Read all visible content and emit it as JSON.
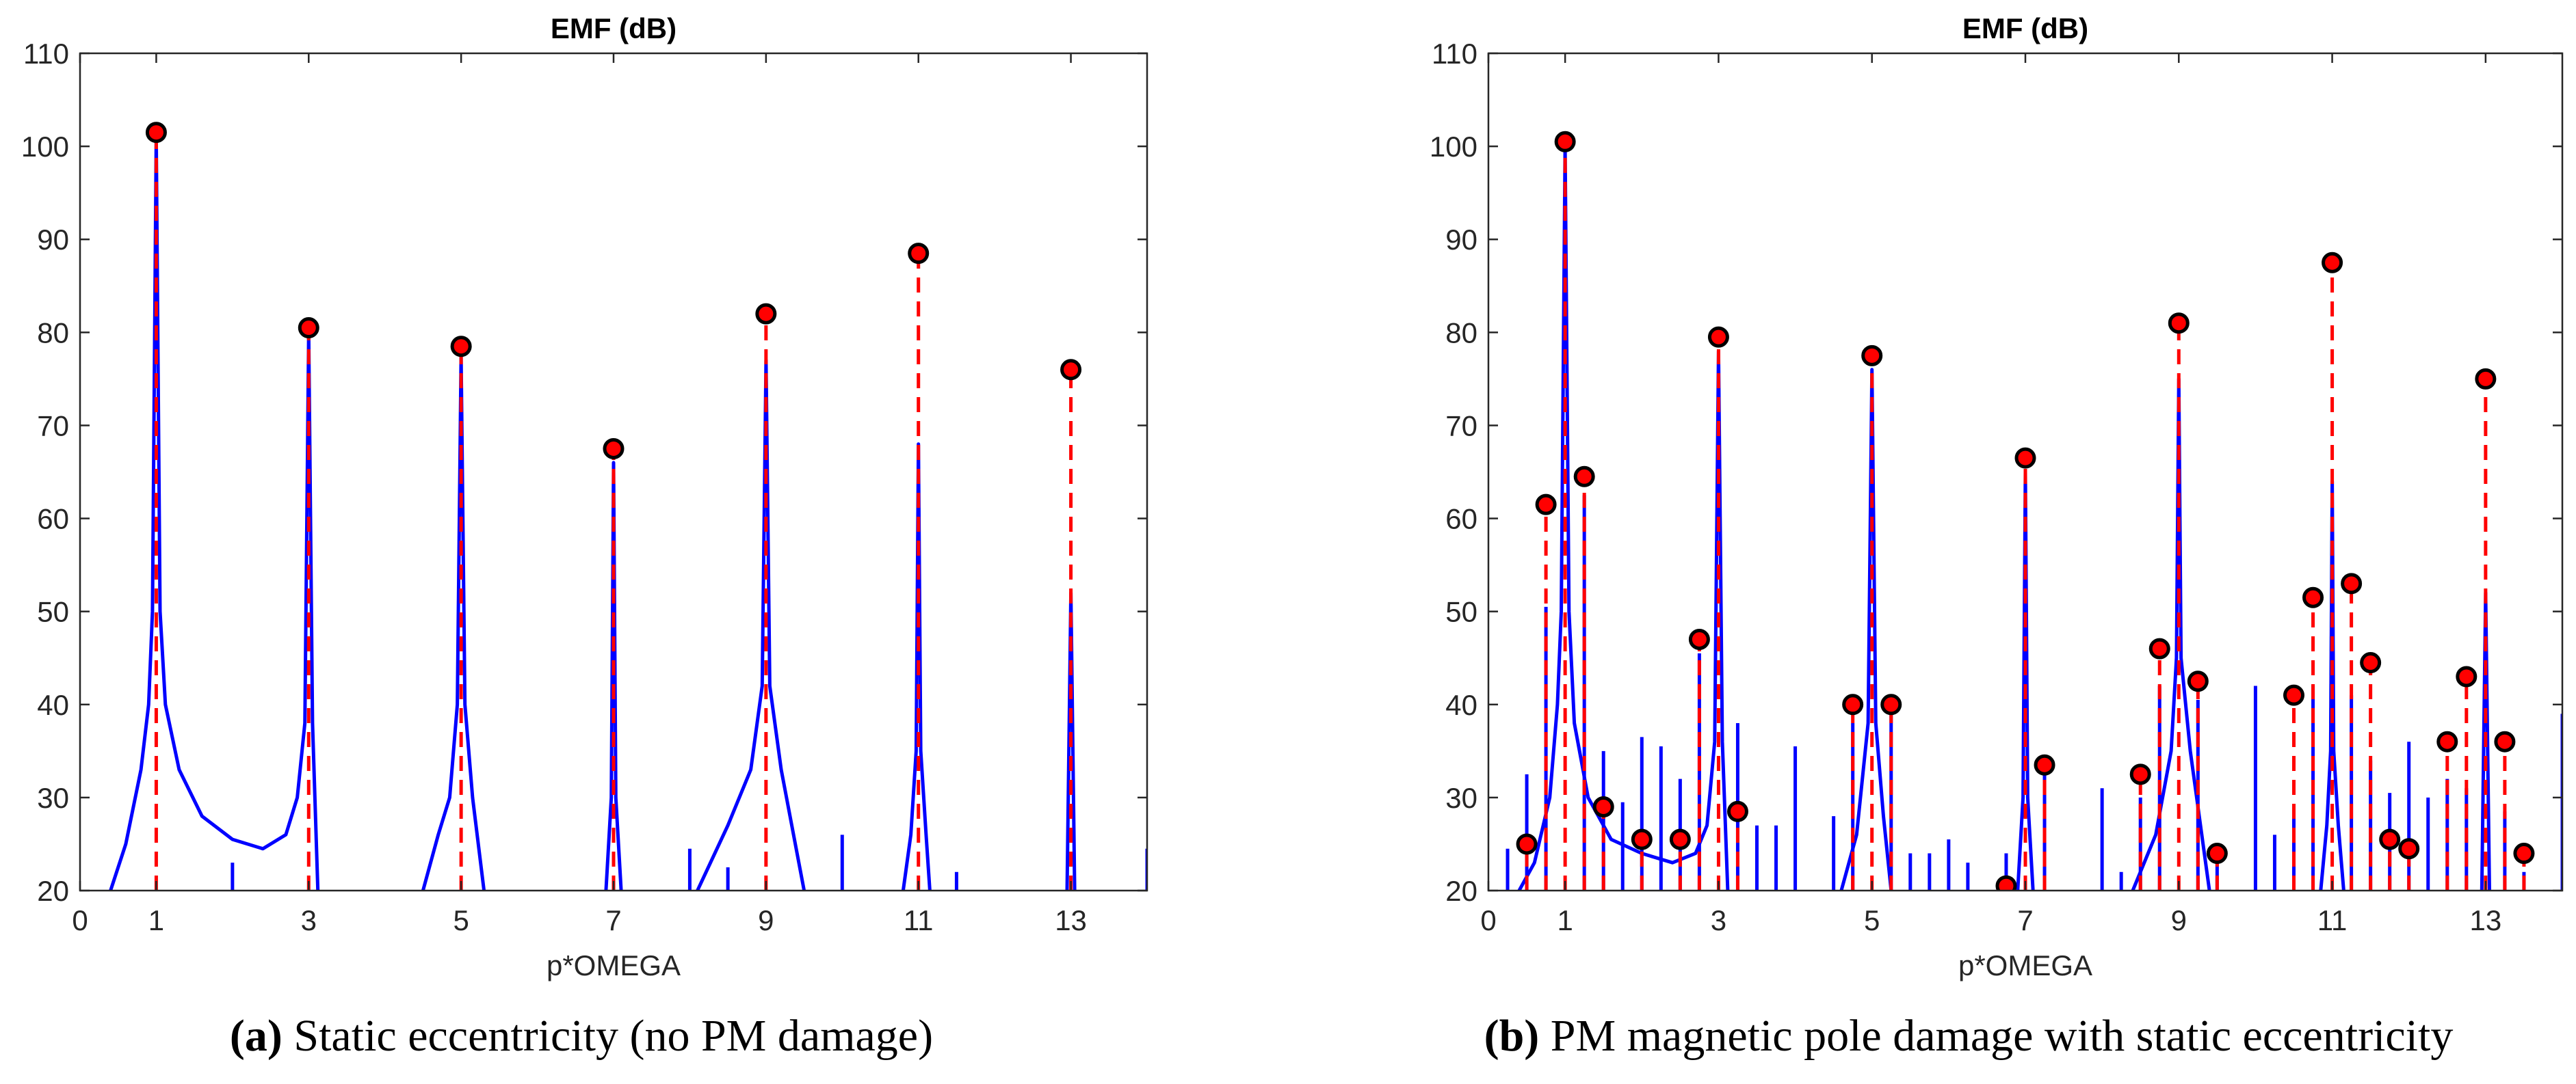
{
  "colors": {
    "spectrum": "#0000ff",
    "harmonic_stem": "#ff0000",
    "marker_fill": "#ff0000",
    "marker_edge": "#000000"
  },
  "captions": {
    "a_tag": "(a)",
    "a_text": " Static eccentricity (no PM damage)",
    "b_tag": "(b)",
    "b_text": " PM magnetic pole damage with static eccentricity"
  },
  "chart_data": [
    {
      "type": "line",
      "title": "EMF (dB)",
      "xlabel": "p*OMEGA",
      "ylabel": "",
      "xlim": [
        0,
        14
      ],
      "ylim": [
        20,
        110
      ],
      "xticks": [
        0,
        1,
        3,
        5,
        7,
        9,
        11,
        13
      ],
      "xtick_labels": [
        "0",
        "1",
        "3",
        "5",
        "7",
        "9",
        "11",
        "13"
      ],
      "yticks": [
        20,
        30,
        40,
        50,
        60,
        70,
        80,
        90,
        100,
        110
      ],
      "ytick_labels": [
        "20",
        "30",
        "40",
        "50",
        "60",
        "70",
        "80",
        "90",
        "100",
        "110"
      ],
      "grid": false,
      "spectrum_peaks": [
        {
          "x": 1,
          "peak": 101,
          "skirt": [
            [
              0.4,
              20
            ],
            [
              0.6,
              25
            ],
            [
              0.8,
              33
            ],
            [
              0.9,
              40
            ],
            [
              0.95,
              50
            ],
            [
              1.0,
              101
            ],
            [
              1.05,
              50
            ],
            [
              1.12,
              40
            ],
            [
              1.3,
              33
            ],
            [
              1.6,
              28
            ],
            [
              2.0,
              25.5
            ],
            [
              2.4,
              24.5
            ],
            [
              2.7,
              26
            ],
            [
              2.85,
              30
            ],
            [
              2.95,
              38
            ],
            [
              3.0,
              80
            ],
            [
              3.05,
              38
            ],
            [
              3.12,
              20
            ]
          ]
        },
        {
          "x": 5,
          "peak": 77.5,
          "skirt": [
            [
              4.5,
              20
            ],
            [
              4.7,
              26
            ],
            [
              4.85,
              30
            ],
            [
              4.95,
              40
            ],
            [
              5.0,
              77.5
            ],
            [
              5.05,
              40
            ],
            [
              5.15,
              30
            ],
            [
              5.3,
              20
            ]
          ]
        },
        {
          "x": 7,
          "peak": 66,
          "skirt": [
            [
              6.9,
              20
            ],
            [
              6.97,
              30
            ],
            [
              7.0,
              66
            ],
            [
              7.03,
              30
            ],
            [
              7.1,
              20
            ]
          ]
        },
        {
          "x": 9,
          "peak": 77,
          "skirt": [
            [
              8.1,
              20
            ],
            [
              8.5,
              27
            ],
            [
              8.8,
              33
            ],
            [
              8.95,
              42
            ],
            [
              9.0,
              77
            ],
            [
              9.05,
              42
            ],
            [
              9.2,
              33
            ],
            [
              9.5,
              20
            ]
          ]
        },
        {
          "x": 11,
          "peak": 68,
          "skirt": [
            [
              10.8,
              20
            ],
            [
              10.9,
              26
            ],
            [
              10.97,
              35
            ],
            [
              11.0,
              68
            ],
            [
              11.03,
              35
            ],
            [
              11.1,
              26
            ],
            [
              11.15,
              20
            ]
          ]
        },
        {
          "x": 13,
          "peak": 52,
          "skirt": [
            [
              12.95,
              20
            ],
            [
              13.0,
              52
            ],
            [
              13.05,
              20
            ]
          ]
        }
      ],
      "spectrum_lines": [
        [
          2.0,
          23
        ],
        [
          8.0,
          24.5
        ],
        [
          8.5,
          22.5
        ],
        [
          10.0,
          26
        ],
        [
          11.5,
          22
        ],
        [
          14.0,
          24.5
        ]
      ],
      "harmonic_stems": [
        {
          "x": 1,
          "y": 101.5
        },
        {
          "x": 3,
          "y": 80.5
        },
        {
          "x": 5,
          "y": 78.5
        },
        {
          "x": 7,
          "y": 67.5
        },
        {
          "x": 9,
          "y": 82
        },
        {
          "x": 11,
          "y": 88.5
        },
        {
          "x": 13,
          "y": 76
        }
      ]
    },
    {
      "type": "line",
      "title": "EMF (dB)",
      "xlabel": "p*OMEGA",
      "ylabel": "",
      "xlim": [
        0,
        14
      ],
      "ylim": [
        20,
        110
      ],
      "xticks": [
        0,
        1,
        3,
        5,
        7,
        9,
        11,
        13
      ],
      "xtick_labels": [
        "0",
        "1",
        "3",
        "5",
        "7",
        "9",
        "11",
        "13"
      ],
      "yticks": [
        20,
        30,
        40,
        50,
        60,
        70,
        80,
        90,
        100,
        110
      ],
      "ytick_labels": [
        "20",
        "30",
        "40",
        "50",
        "60",
        "70",
        "80",
        "90",
        "100",
        "110"
      ],
      "grid": false,
      "spectrum_peaks": [
        {
          "x": 1,
          "peak": 100,
          "skirt": [
            [
              0.4,
              20
            ],
            [
              0.6,
              23
            ],
            [
              0.8,
              30
            ],
            [
              0.9,
              40
            ],
            [
              0.95,
              50
            ],
            [
              1.0,
              100
            ],
            [
              1.05,
              50
            ],
            [
              1.12,
              38
            ],
            [
              1.3,
              30
            ],
            [
              1.6,
              25.5
            ],
            [
              2.0,
              24
            ],
            [
              2.4,
              23
            ],
            [
              2.7,
              24
            ],
            [
              2.85,
              27
            ],
            [
              2.95,
              36
            ],
            [
              3.0,
              78
            ],
            [
              3.05,
              36
            ],
            [
              3.12,
              20
            ]
          ]
        },
        {
          "x": 5,
          "peak": 76,
          "skirt": [
            [
              4.6,
              20
            ],
            [
              4.8,
              26
            ],
            [
              4.95,
              38
            ],
            [
              5.0,
              76
            ],
            [
              5.05,
              38
            ],
            [
              5.15,
              28
            ],
            [
              5.25,
              20
            ]
          ]
        },
        {
          "x": 7,
          "peak": 65,
          "skirt": [
            [
              6.9,
              20
            ],
            [
              6.97,
              30
            ],
            [
              7.0,
              65
            ],
            [
              7.03,
              30
            ],
            [
              7.1,
              20
            ]
          ]
        },
        {
          "x": 9,
          "peak": 75,
          "skirt": [
            [
              8.4,
              20
            ],
            [
              8.7,
              26
            ],
            [
              8.9,
              35
            ],
            [
              8.97,
              45
            ],
            [
              9.0,
              75
            ],
            [
              9.03,
              45
            ],
            [
              9.15,
              35
            ],
            [
              9.4,
              20
            ]
          ]
        },
        {
          "x": 11,
          "peak": 64,
          "skirt": [
            [
              10.85,
              20
            ],
            [
              10.93,
              27
            ],
            [
              10.98,
              35
            ],
            [
              11.0,
              64
            ],
            [
              11.02,
              35
            ],
            [
              11.08,
              27
            ],
            [
              11.15,
              20
            ]
          ]
        },
        {
          "x": 13,
          "peak": 52,
          "skirt": [
            [
              12.95,
              20
            ],
            [
              13.0,
              52
            ],
            [
              13.05,
              20
            ]
          ]
        }
      ],
      "spectrum_lines": [
        [
          0.25,
          24.5
        ],
        [
          0.5,
          32.5
        ],
        [
          0.75,
          50.5
        ],
        [
          1.25,
          62.5
        ],
        [
          1.5,
          35
        ],
        [
          1.75,
          29.5
        ],
        [
          2.0,
          36.5
        ],
        [
          2.25,
          35.5
        ],
        [
          2.5,
          32
        ],
        [
          2.75,
          45.5
        ],
        [
          3.25,
          38
        ],
        [
          3.5,
          27
        ],
        [
          3.75,
          27
        ],
        [
          4.0,
          35.5
        ],
        [
          4.5,
          28
        ],
        [
          4.75,
          38
        ],
        [
          5.25,
          39
        ],
        [
          5.5,
          24
        ],
        [
          5.75,
          24
        ],
        [
          6.0,
          25.5
        ],
        [
          6.25,
          23
        ],
        [
          6.75,
          24
        ],
        [
          7.25,
          33
        ],
        [
          8.0,
          31
        ],
        [
          8.25,
          22
        ],
        [
          8.5,
          30
        ],
        [
          8.75,
          42
        ],
        [
          9.25,
          40.5
        ],
        [
          9.5,
          23.5
        ],
        [
          10.0,
          42
        ],
        [
          10.25,
          26
        ],
        [
          10.5,
          29
        ],
        [
          10.75,
          42
        ],
        [
          11.25,
          41
        ],
        [
          11.5,
          34
        ],
        [
          11.75,
          30.5
        ],
        [
          12.0,
          36
        ],
        [
          12.25,
          30
        ],
        [
          12.5,
          32
        ],
        [
          12.75,
          31
        ],
        [
          13.25,
          28.5
        ],
        [
          13.5,
          22
        ],
        [
          14.0,
          39
        ]
      ],
      "harmonic_stems": [
        {
          "x": 0.5,
          "y": 25
        },
        {
          "x": 0.75,
          "y": 61.5
        },
        {
          "x": 1.0,
          "y": 100.5
        },
        {
          "x": 1.25,
          "y": 64.5
        },
        {
          "x": 1.5,
          "y": 29
        },
        {
          "x": 2.0,
          "y": 25.5
        },
        {
          "x": 2.5,
          "y": 25.5
        },
        {
          "x": 2.75,
          "y": 47
        },
        {
          "x": 3.0,
          "y": 79.5
        },
        {
          "x": 3.25,
          "y": 28.5
        },
        {
          "x": 4.75,
          "y": 40
        },
        {
          "x": 5.0,
          "y": 77.5
        },
        {
          "x": 5.25,
          "y": 40
        },
        {
          "x": 6.75,
          "y": 20.5
        },
        {
          "x": 7.0,
          "y": 66.5
        },
        {
          "x": 7.25,
          "y": 33.5
        },
        {
          "x": 8.5,
          "y": 32.5
        },
        {
          "x": 8.75,
          "y": 46
        },
        {
          "x": 9.0,
          "y": 81
        },
        {
          "x": 9.25,
          "y": 42.5
        },
        {
          "x": 9.5,
          "y": 24
        },
        {
          "x": 10.5,
          "y": 41
        },
        {
          "x": 10.75,
          "y": 51.5
        },
        {
          "x": 11.0,
          "y": 87.5
        },
        {
          "x": 11.25,
          "y": 53
        },
        {
          "x": 11.5,
          "y": 44.5
        },
        {
          "x": 11.75,
          "y": 25.5
        },
        {
          "x": 12.0,
          "y": 24.5
        },
        {
          "x": 12.5,
          "y": 36
        },
        {
          "x": 12.75,
          "y": 43
        },
        {
          "x": 13.0,
          "y": 75
        },
        {
          "x": 13.25,
          "y": 36
        },
        {
          "x": 13.5,
          "y": 24
        }
      ]
    }
  ]
}
